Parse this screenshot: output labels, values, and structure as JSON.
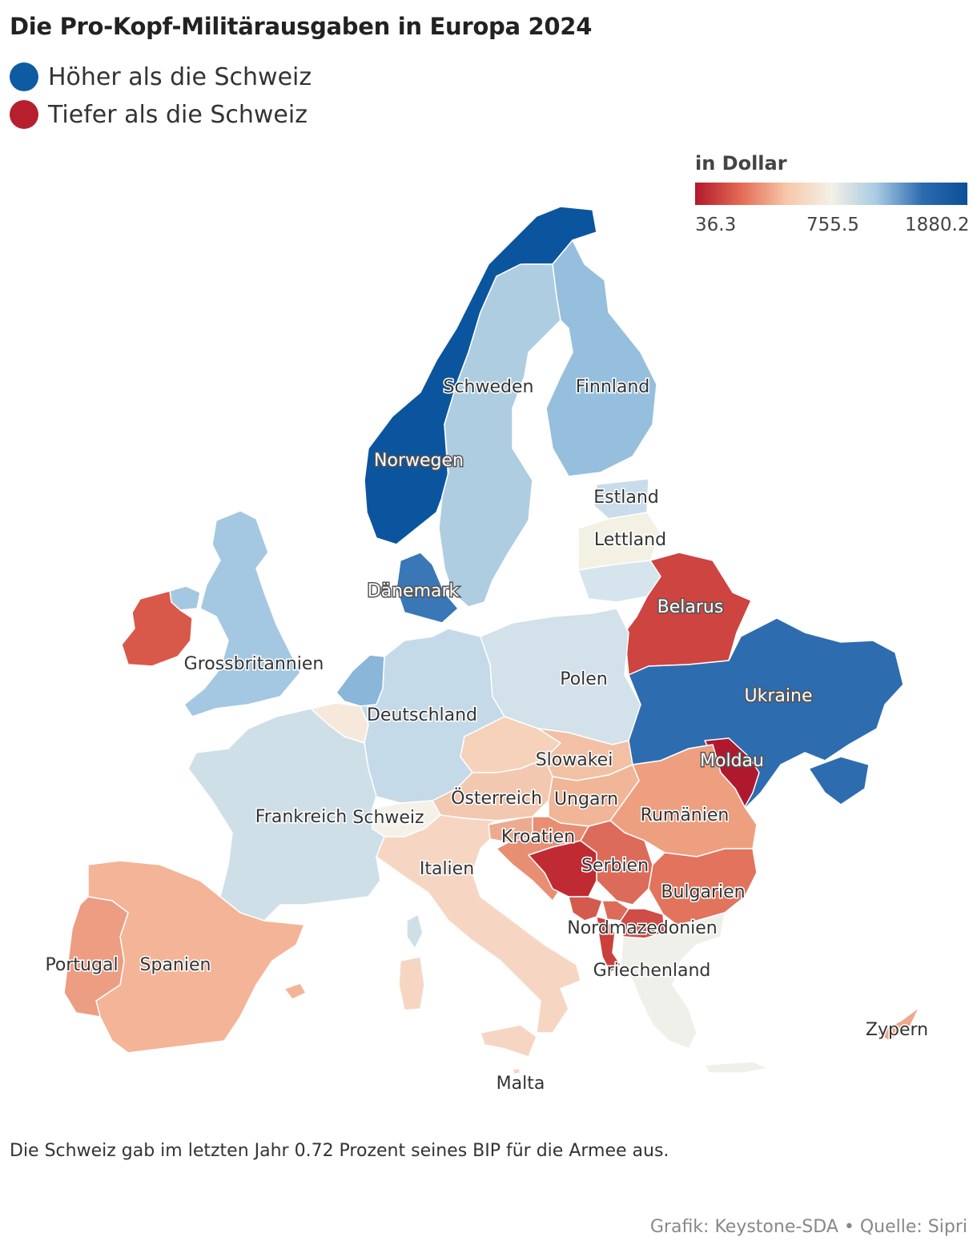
{
  "title": "Die Pro-Kopf-Militärausgaben in Europa 2024",
  "legend": {
    "higher": {
      "label": "Höher als die Schweiz",
      "color": "#0f5ba3"
    },
    "lower": {
      "label": "Tiefer als die Schweiz",
      "color": "#b61f2e"
    }
  },
  "scale": {
    "title": "in Dollar",
    "min_label": "36.3",
    "mid_label": "755.5",
    "max_label": "1880.2",
    "colors": [
      "#b2182b",
      "#e36a54",
      "#f7c6a8",
      "#f4f1e6",
      "#a9cae3",
      "#2b6cb0",
      "#0c4f98"
    ]
  },
  "countries": {
    "norway": {
      "label": "Norwegen",
      "color": "#0b559e"
    },
    "sweden": {
      "label": "Schweden",
      "color": "#aecde1"
    },
    "finland": {
      "label": "Finnland",
      "color": "#95bfdd"
    },
    "estonia": {
      "label": "Estland",
      "color": "#c8dceb"
    },
    "latvia": {
      "label": "Lettland",
      "color": "#f3f0e4"
    },
    "lithuania": {
      "label": "",
      "color": "#d6e4ee"
    },
    "denmark": {
      "label": "Dänemark",
      "color": "#3a77b6"
    },
    "uk": {
      "label": "Grossbritannien",
      "color": "#a4c8e1"
    },
    "ireland": {
      "label": "",
      "color": "#d8594a"
    },
    "netherlands": {
      "label": "",
      "color": "#8ab6da"
    },
    "belgium": {
      "label": "",
      "color": "#f6e9dc"
    },
    "germany": {
      "label": "Deutschland",
      "color": "#c5dae8"
    },
    "poland": {
      "label": "Polen",
      "color": "#d2e1ea"
    },
    "belarus": {
      "label": "Belarus",
      "color": "#cd4440"
    },
    "ukraine": {
      "label": "Ukraine",
      "color": "#2e6cb0"
    },
    "moldova": {
      "label": "Moldau",
      "color": "#b0192d"
    },
    "france": {
      "label": "Frankreich",
      "color": "#cfdfe8"
    },
    "switzerland": {
      "label": "Schweiz",
      "color": "#f4f1e8"
    },
    "austria": {
      "label": "Österreich",
      "color": "#f3c8b0"
    },
    "czech": {
      "label": "",
      "color": "#f6d2bb"
    },
    "slovakia": {
      "label": "Slowakei",
      "color": "#f2c1a5"
    },
    "hungary": {
      "label": "Ungarn",
      "color": "#f0b697"
    },
    "romania": {
      "label": "Rumänien",
      "color": "#ee9f80"
    },
    "croatia": {
      "label": "Kroatien",
      "color": "#e78e73"
    },
    "slovenia": {
      "label": "",
      "color": "#ecab90"
    },
    "bosnia": {
      "label": "",
      "color": "#c02b33"
    },
    "serbia": {
      "label": "Serbien",
      "color": "#dd6b5a"
    },
    "montenegro": {
      "label": "",
      "color": "#d55a4e"
    },
    "albania": {
      "label": "",
      "color": "#c9403d"
    },
    "north_macedonia": {
      "label": "Nordmazedonien",
      "color": "#cf4d46"
    },
    "bulgaria": {
      "label": "Bulgarien",
      "color": "#e2735d"
    },
    "greece": {
      "label": "Griechenland",
      "color": "#eff0ea"
    },
    "italy": {
      "label": "Italien",
      "color": "#f6d6c3"
    },
    "malta": {
      "label": "Malta",
      "color": "#f6d6c3"
    },
    "spain": {
      "label": "Spanien",
      "color": "#f4b497"
    },
    "portugal": {
      "label": "Portugal",
      "color": "#ec9d82"
    },
    "cyprus": {
      "label": "Zypern",
      "color": "#eea88b"
    }
  },
  "note": "Die Schweiz gab im letzten Jahr 0.72 Prozent seines BIP für die Armee aus.",
  "credit": "Grafik: Keystone-SDA • Quelle: Sipri"
}
